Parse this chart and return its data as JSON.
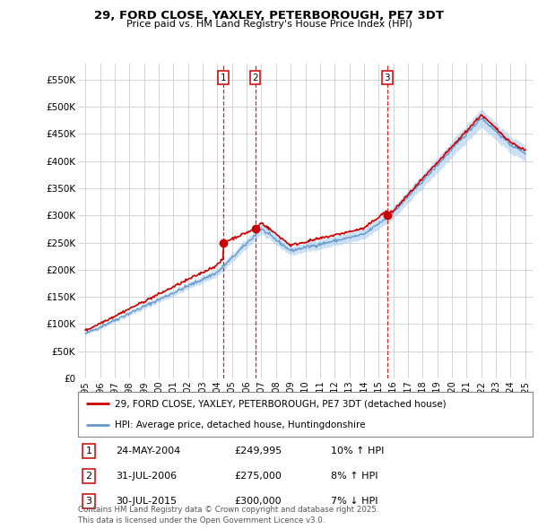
{
  "title_line1": "29, FORD CLOSE, YAXLEY, PETERBOROUGH, PE7 3DT",
  "title_line2": "Price paid vs. HM Land Registry's House Price Index (HPI)",
  "ylabel_ticks": [
    "£0",
    "£50K",
    "£100K",
    "£150K",
    "£200K",
    "£250K",
    "£300K",
    "£350K",
    "£400K",
    "£450K",
    "£500K",
    "£550K"
  ],
  "ytick_values": [
    0,
    50000,
    100000,
    150000,
    200000,
    250000,
    300000,
    350000,
    400000,
    450000,
    500000,
    550000
  ],
  "ylim": [
    0,
    580000
  ],
  "xlim_start": 1994.5,
  "xlim_end": 2025.5,
  "xticks": [
    1995,
    1996,
    1997,
    1998,
    1999,
    2000,
    2001,
    2002,
    2003,
    2004,
    2005,
    2006,
    2007,
    2008,
    2009,
    2010,
    2011,
    2012,
    2013,
    2014,
    2015,
    2016,
    2017,
    2018,
    2019,
    2020,
    2021,
    2022,
    2023,
    2024,
    2025
  ],
  "red_line_color": "#cc0000",
  "blue_line_color": "#6699cc",
  "blue_fill_color": "#aaccee",
  "grid_color": "#cccccc",
  "vline_color": "#cc0000",
  "sale_markers": [
    {
      "year": 2004.39,
      "value": 249995,
      "label": "1"
    },
    {
      "year": 2006.58,
      "value": 275000,
      "label": "2"
    },
    {
      "year": 2015.58,
      "value": 300000,
      "label": "3"
    }
  ],
  "table_data": [
    {
      "num": "1",
      "date": "24-MAY-2004",
      "price": "£249,995",
      "hpi": "10% ↑ HPI"
    },
    {
      "num": "2",
      "date": "31-JUL-2006",
      "price": "£275,000",
      "hpi": "8% ↑ HPI"
    },
    {
      "num": "3",
      "date": "30-JUL-2015",
      "price": "£300,000",
      "hpi": "7% ↓ HPI"
    }
  ],
  "legend_entries": [
    "29, FORD CLOSE, YAXLEY, PETERBOROUGH, PE7 3DT (detached house)",
    "HPI: Average price, detached house, Huntingdonshire"
  ],
  "footnote": "Contains HM Land Registry data © Crown copyright and database right 2025.\nThis data is licensed under the Open Government Licence v3.0.",
  "background_color": "#ffffff",
  "fig_width": 6.0,
  "fig_height": 5.9,
  "dpi": 100
}
